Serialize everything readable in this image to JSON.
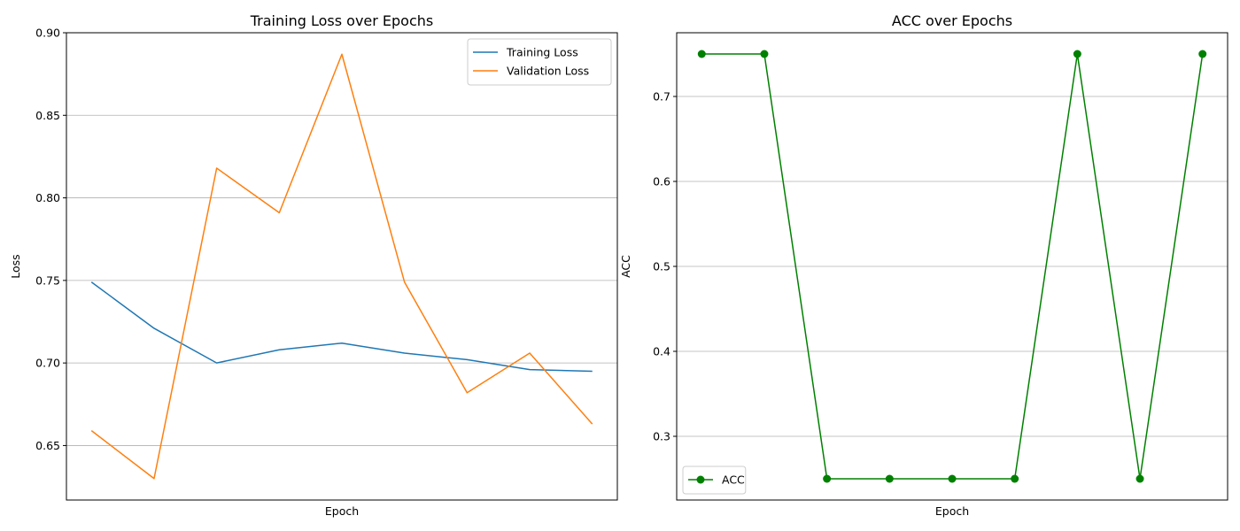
{
  "chart_data": [
    {
      "type": "line",
      "title": "Training Loss over Epochs",
      "xlabel": "Epoch",
      "ylabel": "Loss",
      "xlim": [
        0.6,
        9.4
      ],
      "ylim": [
        0.617,
        0.9
      ],
      "yticks": [
        0.65,
        0.7,
        0.75,
        0.8,
        0.85,
        0.9
      ],
      "ytick_labels": [
        "0.65",
        "0.70",
        "0.75",
        "0.80",
        "0.85",
        "0.90"
      ],
      "x_ticks_shown": false,
      "grid": "y",
      "legend_position": "upper right",
      "x": [
        1,
        2,
        3,
        4,
        5,
        6,
        7,
        8,
        9
      ],
      "series": [
        {
          "name": "Training Loss",
          "color": "#1f77b4",
          "marker": "none",
          "values": [
            0.749,
            0.721,
            0.7,
            0.708,
            0.712,
            0.706,
            0.702,
            0.696,
            0.695
          ]
        },
        {
          "name": "Validation Loss",
          "color": "#ff7f0e",
          "marker": "none",
          "values": [
            0.659,
            0.63,
            0.818,
            0.791,
            0.887,
            0.749,
            0.682,
            0.706,
            0.663
          ]
        }
      ]
    },
    {
      "type": "line",
      "title": "ACC over Epochs",
      "xlabel": "Epoch",
      "ylabel": "ACC",
      "xlim": [
        0.6,
        9.4
      ],
      "ylim": [
        0.225,
        0.775
      ],
      "yticks": [
        0.3,
        0.4,
        0.5,
        0.6,
        0.7
      ],
      "ytick_labels": [
        "0.3",
        "0.4",
        "0.5",
        "0.6",
        "0.7"
      ],
      "x_ticks_shown": false,
      "grid": "y",
      "legend_position": "lower left",
      "x": [
        1,
        2,
        3,
        4,
        5,
        6,
        7,
        8,
        9
      ],
      "series": [
        {
          "name": "ACC",
          "color": "#008000",
          "marker": "circle",
          "values": [
            0.75,
            0.75,
            0.25,
            0.25,
            0.25,
            0.25,
            0.75,
            0.25,
            0.75
          ]
        }
      ]
    }
  ]
}
